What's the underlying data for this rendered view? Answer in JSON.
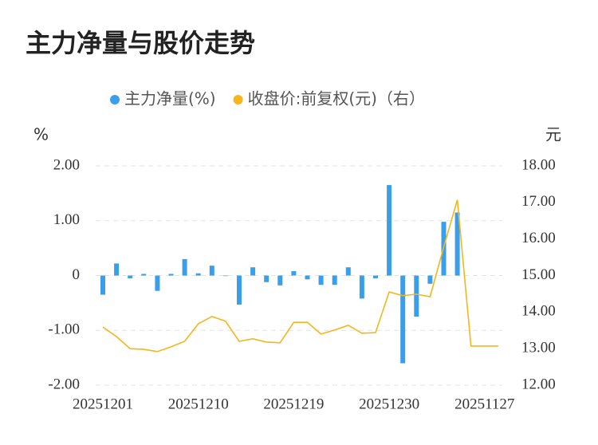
{
  "chart_data": {
    "type": "bar-line",
    "title": "主力净量与股价走势",
    "y_label": "%",
    "y2_label": "元",
    "categories": [
      "20251201",
      null,
      null,
      null,
      null,
      null,
      null,
      "20251210",
      null,
      null,
      null,
      null,
      null,
      null,
      "20251219",
      null,
      null,
      null,
      null,
      null,
      null,
      "20251230",
      null,
      null,
      null,
      null,
      null,
      null,
      "20251127",
      null
    ],
    "series": [
      {
        "name": "主力净量(%)",
        "color": "#3a9ee8",
        "type": "bar",
        "values": [
          -0.35,
          0.22,
          -0.05,
          0.03,
          -0.28,
          0.03,
          0.3,
          0.04,
          0.18,
          -0.01,
          -0.53,
          0.15,
          -0.12,
          -0.18,
          0.08,
          -0.07,
          -0.17,
          -0.17,
          0.15,
          -0.42,
          -0.05,
          1.65,
          -1.6,
          -0.75,
          -0.15,
          0.98,
          1.15,
          null,
          null,
          null
        ]
      },
      {
        "name": "收盘价:前复权(元)（右）",
        "color": "#f5b51b",
        "type": "line",
        "axis": "y2",
        "values": [
          13.59,
          13.33,
          13.0,
          12.98,
          12.92,
          13.05,
          13.2,
          13.68,
          13.88,
          13.75,
          13.2,
          13.27,
          13.18,
          13.16,
          13.72,
          13.72,
          13.4,
          13.51,
          13.64,
          13.42,
          13.44,
          14.55,
          14.45,
          14.49,
          14.42,
          15.78,
          17.07,
          13.07,
          13.07,
          13.07
        ]
      }
    ],
    "ylim": [
      -2,
      2
    ],
    "yticks": [
      {
        "value": -2,
        "label": "-2.00"
      },
      {
        "value": -1,
        "label": "-1.00"
      },
      0,
      {
        "value": 1,
        "label": "1.00"
      },
      {
        "value": 2,
        "label": "2.00"
      }
    ],
    "y2lim": [
      12,
      18
    ],
    "y2ticks": [
      {
        "value": 12,
        "label": "12.00"
      },
      {
        "value": 13,
        "label": "13.00"
      },
      {
        "value": 14,
        "label": "14.00"
      },
      {
        "value": 15,
        "label": "15.00"
      },
      {
        "value": 16,
        "label": "16.00"
      },
      {
        "value": 17,
        "label": "17.00"
      },
      {
        "value": 18,
        "label": "18.00"
      }
    ],
    "grid": true
  }
}
